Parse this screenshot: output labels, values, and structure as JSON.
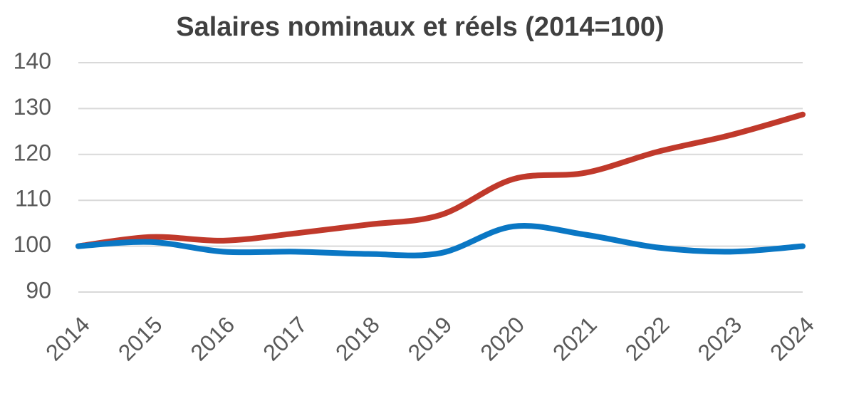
{
  "chart_data": {
    "type": "line",
    "title": "Salaires nominaux et réels (2014=100)",
    "categories": [
      "2014",
      "2015",
      "2016",
      "2017",
      "2018",
      "2019",
      "2020",
      "2021",
      "2022",
      "2023",
      "2024"
    ],
    "series": [
      {
        "color": "#c0392b",
        "values": [
          100,
          102,
          101.2,
          102.8,
          104.7,
          106.8,
          114.6,
          116,
          120.6,
          124.2,
          128.7
        ]
      },
      {
        "color": "#0a77c4",
        "values": [
          100,
          100.9,
          98.8,
          98.8,
          98.3,
          98.5,
          104.3,
          102.5,
          99.7,
          98.8,
          100
        ]
      }
    ],
    "ylim": [
      90,
      140
    ],
    "yticks": [
      90,
      100,
      110,
      120,
      130,
      140
    ],
    "grid": true
  }
}
